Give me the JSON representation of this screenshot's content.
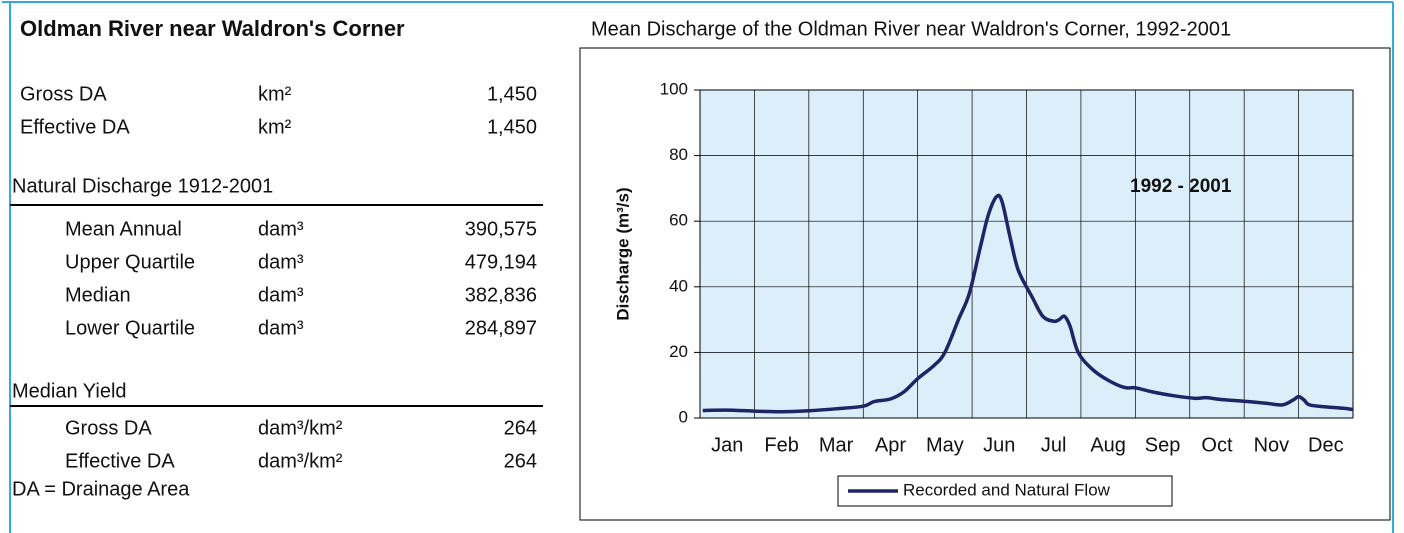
{
  "panel": {
    "title": "Oldman River near Waldron's Corner",
    "area_rows": [
      {
        "label": "Gross DA",
        "unit": "km²",
        "value": "1,450"
      },
      {
        "label": "Effective DA",
        "unit": "km²",
        "value": "1,450"
      }
    ],
    "discharge_heading": "Natural Discharge 1912-2001",
    "discharge_rows": [
      {
        "label": "Mean Annual",
        "unit": "dam³",
        "value": "390,575"
      },
      {
        "label": "Upper Quartile",
        "unit": "dam³",
        "value": "479,194"
      },
      {
        "label": "Median",
        "unit": "dam³",
        "value": "382,836"
      },
      {
        "label": "Lower Quartile",
        "unit": "dam³",
        "value": "284,897"
      }
    ],
    "yield_heading": "Median Yield",
    "yield_rows": [
      {
        "label": "Gross DA",
        "unit": "dam³/km²",
        "value": "264"
      },
      {
        "label": "Effective DA",
        "unit": "dam³/km²",
        "value": "264"
      }
    ],
    "footnote": "DA = Drainage Area"
  },
  "chart_data": {
    "type": "line",
    "title": "Mean Discharge of the Oldman River near Waldron's Corner, 1992-2001",
    "y_label": "Discharge (m³/s)",
    "annotation": "1992 - 2001",
    "x": [
      0.05,
      0.5,
      1.0,
      1.5,
      2.0,
      2.5,
      3.0,
      3.2,
      3.5,
      3.75,
      4.0,
      4.3,
      4.5,
      4.75,
      4.95,
      5.15,
      5.3,
      5.45,
      5.55,
      5.7,
      5.85,
      6.1,
      6.3,
      6.5,
      6.6,
      6.7,
      6.8,
      6.95,
      7.2,
      7.5,
      7.8,
      8.0,
      8.3,
      8.7,
      9.1,
      9.3,
      9.6,
      10.0,
      10.4,
      10.7,
      10.9,
      11.0,
      11.1,
      11.2,
      11.5,
      11.8,
      12.0
    ],
    "series": [
      {
        "name": "Recorded and Natural Flow",
        "color": "#1f2466",
        "values": [
          2.3,
          2.4,
          2.1,
          1.9,
          2.2,
          2.8,
          3.6,
          5.0,
          5.8,
          8,
          12,
          16,
          20,
          30,
          38,
          52,
          62,
          67.5,
          66,
          55,
          45,
          37,
          31,
          29.5,
          30,
          31,
          28,
          20,
          15,
          11.5,
          9.3,
          9.2,
          8,
          6.8,
          6,
          6.2,
          5.6,
          5.1,
          4.5,
          4,
          5.5,
          6.5,
          5.5,
          4,
          3.4,
          3,
          2.6
        ]
      }
    ],
    "xlim": [
      0,
      12
    ],
    "xticks": [
      {
        "value": 0.5,
        "label": "Jan"
      },
      {
        "value": 1.5,
        "label": "Feb"
      },
      {
        "value": 2.5,
        "label": "Mar"
      },
      {
        "value": 3.5,
        "label": "Apr"
      },
      {
        "value": 4.5,
        "label": "May"
      },
      {
        "value": 5.5,
        "label": "Jun"
      },
      {
        "value": 6.5,
        "label": "Jul"
      },
      {
        "value": 7.5,
        "label": "Aug"
      },
      {
        "value": 8.5,
        "label": "Sep"
      },
      {
        "value": 9.5,
        "label": "Oct"
      },
      {
        "value": 10.5,
        "label": "Nov"
      },
      {
        "value": 11.5,
        "label": "Dec"
      }
    ],
    "ylim": [
      0,
      100
    ],
    "yticks": [
      0,
      20,
      40,
      60,
      80,
      100
    ],
    "grid": true,
    "plot_background": "#dbeef9",
    "legend": "bottom"
  }
}
